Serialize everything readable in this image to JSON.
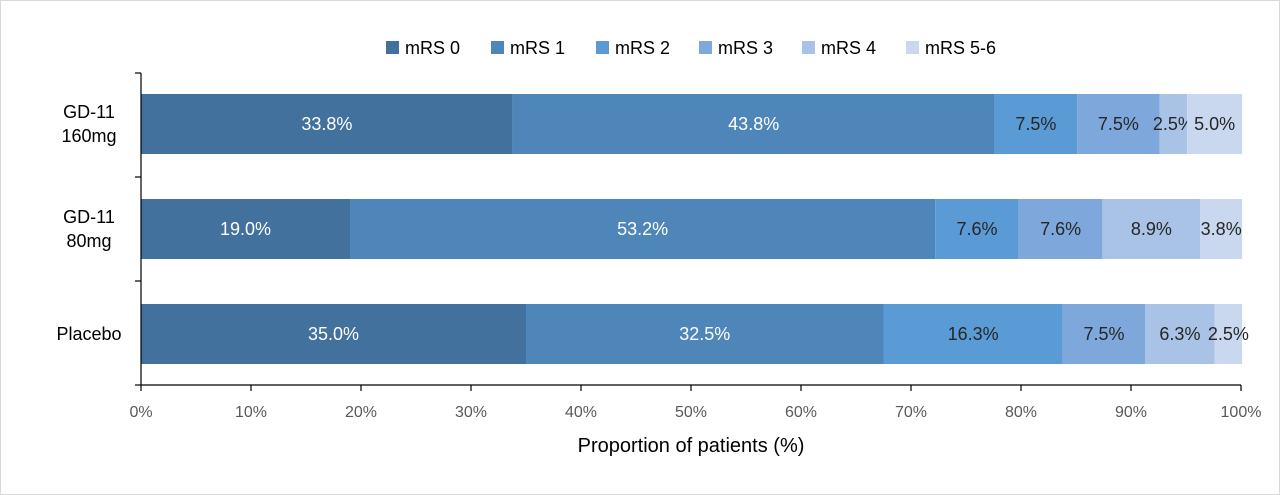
{
  "chart_data": {
    "type": "bar",
    "orientation": "horizontal",
    "stacked": true,
    "title": "",
    "xlabel": "Proportion of patients (%)",
    "ylabel": "",
    "xlim": [
      0,
      100
    ],
    "x_ticks": [
      "0%",
      "10%",
      "20%",
      "30%",
      "40%",
      "50%",
      "60%",
      "70%",
      "80%",
      "90%",
      "100%"
    ],
    "categories": [
      {
        "lines": [
          "GD-11",
          "160mg"
        ]
      },
      {
        "lines": [
          "GD-11",
          "80mg"
        ]
      },
      {
        "lines": [
          "Placebo"
        ]
      }
    ],
    "legend_position": "top",
    "grid": false,
    "series": [
      {
        "name": "mRS 0",
        "color": "#41719c",
        "label_color": "#ffffff",
        "values": [
          33.8,
          19.0,
          35.0
        ],
        "labels": [
          "33.8%",
          "19.0%",
          "35.0%"
        ]
      },
      {
        "name": "mRS 1",
        "color": "#4f86ba",
        "label_color": "#ffffff",
        "values": [
          43.8,
          53.2,
          32.5
        ],
        "labels": [
          "43.8%",
          "53.2%",
          "32.5%"
        ]
      },
      {
        "name": "mRS 2",
        "color": "#5b9bd5",
        "label_color": "#262626",
        "values": [
          7.5,
          7.6,
          16.3
        ],
        "labels": [
          "7.5%",
          "7.6%",
          "16.3%"
        ]
      },
      {
        "name": "mRS 3",
        "color": "#7ea8dc",
        "label_color": "#262626",
        "values": [
          7.5,
          7.6,
          7.5
        ],
        "labels": [
          "7.5%",
          "7.6%",
          "7.5%"
        ]
      },
      {
        "name": "mRS 4",
        "color": "#a9c3e6",
        "label_color": "#262626",
        "values": [
          2.5,
          8.9,
          6.3
        ],
        "labels": [
          "2.5%",
          "8.9%",
          "6.3%"
        ]
      },
      {
        "name": "mRS 5-6",
        "color": "#c9d8ef",
        "label_color": "#262626",
        "values": [
          5.0,
          3.8,
          2.5
        ],
        "labels": [
          "5.0%",
          "3.8%",
          "2.5%"
        ]
      }
    ]
  }
}
